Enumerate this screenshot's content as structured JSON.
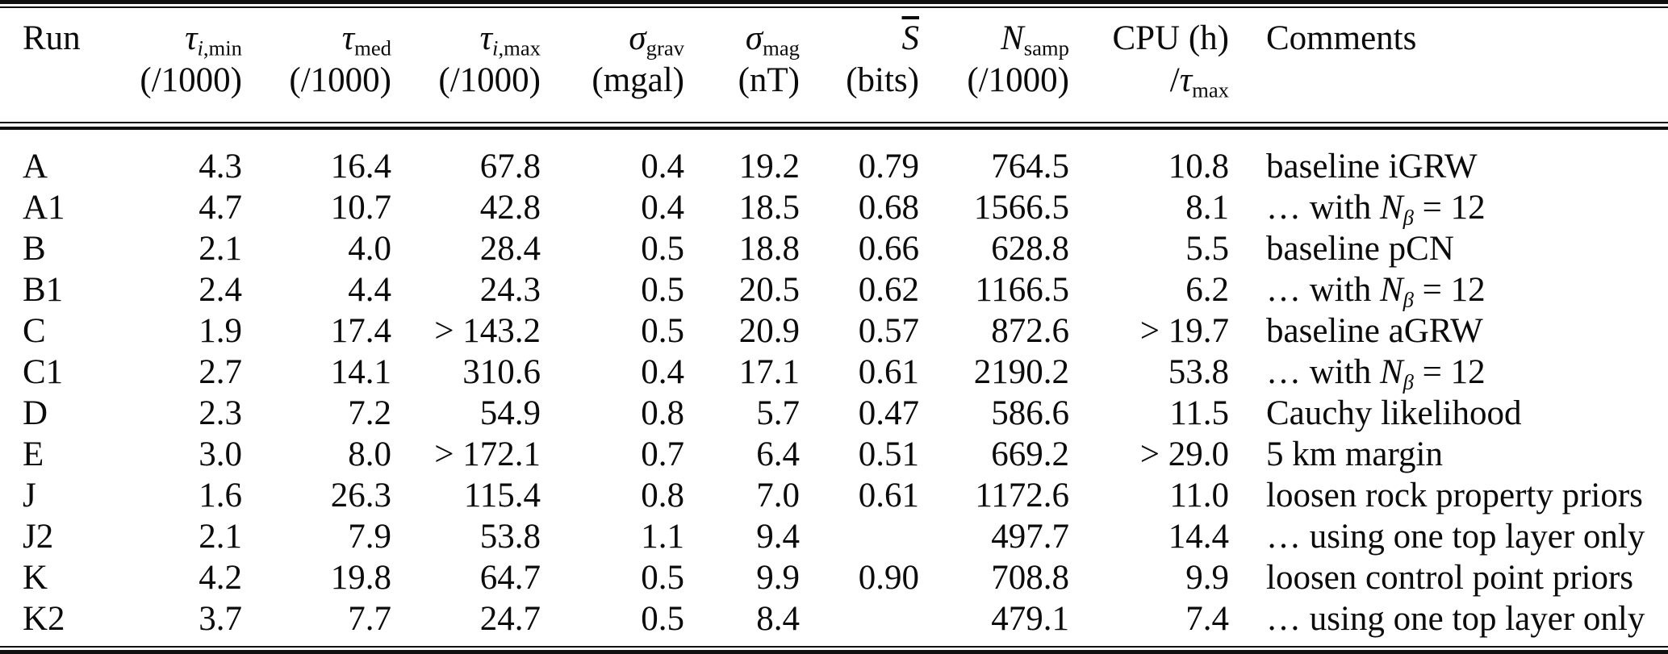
{
  "page": {
    "background": "#ffffff",
    "text_color": "#0b0b0b",
    "rule_color": "#101010"
  },
  "table": {
    "columns": [
      {
        "id": "run",
        "align": "left",
        "line1": "Run",
        "line2": ""
      },
      {
        "id": "tau_i_min",
        "align": "right",
        "line1": "<i>τ</i><sub><i>i</i>,min</sub>",
        "line2": "(/1000)"
      },
      {
        "id": "tau_med",
        "align": "right",
        "line1": "<i>τ</i><sub>med</sub>",
        "line2": "(/1000)"
      },
      {
        "id": "tau_i_max",
        "align": "right",
        "line1": "<i>τ</i><sub><i>i</i>,max</sub>",
        "line2": "(/1000)"
      },
      {
        "id": "sigma_grav",
        "align": "right",
        "line1": "<i>σ</i><sub>grav</sub>",
        "line2": "(mgal)"
      },
      {
        "id": "sigma_mag",
        "align": "right",
        "line1": "<i>σ</i><sub>mag</sub>",
        "line2": "(nT)"
      },
      {
        "id": "s_bar",
        "align": "right",
        "line1": "<span class='ov'>S</span>",
        "line2": "(bits)"
      },
      {
        "id": "n_samp",
        "align": "right",
        "line1": "<i>N</i><sub>samp</sub>",
        "line2": "(/1000)"
      },
      {
        "id": "cpu",
        "align": "right",
        "line1": "CPU (h)",
        "line2": "/<i>τ</i><sub>max</sub>"
      },
      {
        "id": "comments",
        "align": "left",
        "line1": "Comments",
        "line2": ""
      }
    ],
    "rows": [
      {
        "run": "A",
        "tau_i_min": "4.3",
        "tau_med": "16.4",
        "tau_i_max": "67.8",
        "sigma_grav": "0.4",
        "sigma_mag": "19.2",
        "s_bar": "0.79",
        "n_samp": "764.5",
        "cpu": "10.8",
        "comments": "baseline iGRW"
      },
      {
        "run": "A1",
        "tau_i_min": "4.7",
        "tau_med": "10.7",
        "tau_i_max": "42.8",
        "sigma_grav": "0.4",
        "sigma_mag": "18.5",
        "s_bar": "0.68",
        "n_samp": "1566.5",
        "cpu": "8.1",
        "comments": "… with <i>N</i><sub><i>β</i></sub> = 12"
      },
      {
        "run": "B",
        "tau_i_min": "2.1",
        "tau_med": "4.0",
        "tau_i_max": "28.4",
        "sigma_grav": "0.5",
        "sigma_mag": "18.8",
        "s_bar": "0.66",
        "n_samp": "628.8",
        "cpu": "5.5",
        "comments": "baseline pCN"
      },
      {
        "run": "B1",
        "tau_i_min": "2.4",
        "tau_med": "4.4",
        "tau_i_max": "24.3",
        "sigma_grav": "0.5",
        "sigma_mag": "20.5",
        "s_bar": "0.62",
        "n_samp": "1166.5",
        "cpu": "6.2",
        "comments": "… with <i>N</i><sub><i>β</i></sub> = 12"
      },
      {
        "run": "C",
        "tau_i_min": "1.9",
        "tau_med": "17.4",
        "tau_i_max": "&gt; 143.2",
        "sigma_grav": "0.5",
        "sigma_mag": "20.9",
        "s_bar": "0.57",
        "n_samp": "872.6",
        "cpu": "&gt; 19.7",
        "comments": "baseline aGRW"
      },
      {
        "run": "C1",
        "tau_i_min": "2.7",
        "tau_med": "14.1",
        "tau_i_max": "310.6",
        "sigma_grav": "0.4",
        "sigma_mag": "17.1",
        "s_bar": "0.61",
        "n_samp": "2190.2",
        "cpu": "53.8",
        "comments": "… with <i>N</i><sub><i>β</i></sub> = 12"
      },
      {
        "run": "D",
        "tau_i_min": "2.3",
        "tau_med": "7.2",
        "tau_i_max": "54.9",
        "sigma_grav": "0.8",
        "sigma_mag": "5.7",
        "s_bar": "0.47",
        "n_samp": "586.6",
        "cpu": "11.5",
        "comments": "Cauchy likelihood"
      },
      {
        "run": "E",
        "tau_i_min": "3.0",
        "tau_med": "8.0",
        "tau_i_max": "&gt; 172.1",
        "sigma_grav": "0.7",
        "sigma_mag": "6.4",
        "s_bar": "0.51",
        "n_samp": "669.2",
        "cpu": "&gt; 29.0",
        "comments": "5 km margin"
      },
      {
        "run": "J",
        "tau_i_min": "1.6",
        "tau_med": "26.3",
        "tau_i_max": "115.4",
        "sigma_grav": "0.8",
        "sigma_mag": "7.0",
        "s_bar": "0.61",
        "n_samp": "1172.6",
        "cpu": "11.0",
        "comments": "loosen rock property priors"
      },
      {
        "run": "J2",
        "tau_i_min": "2.1",
        "tau_med": "7.9",
        "tau_i_max": "53.8",
        "sigma_grav": "1.1",
        "sigma_mag": "9.4",
        "s_bar": "",
        "n_samp": "497.7",
        "cpu": "14.4",
        "comments": "… using one top layer only"
      },
      {
        "run": "K",
        "tau_i_min": "4.2",
        "tau_med": "19.8",
        "tau_i_max": "64.7",
        "sigma_grav": "0.5",
        "sigma_mag": "9.9",
        "s_bar": "0.90",
        "n_samp": "708.8",
        "cpu": "9.9",
        "comments": "loosen control point priors"
      },
      {
        "run": "K2",
        "tau_i_min": "3.7",
        "tau_med": "7.7",
        "tau_i_max": "24.7",
        "sigma_grav": "0.5",
        "sigma_mag": "8.4",
        "s_bar": "",
        "n_samp": "479.1",
        "cpu": "7.4",
        "comments": "… using one top layer only"
      }
    ]
  }
}
